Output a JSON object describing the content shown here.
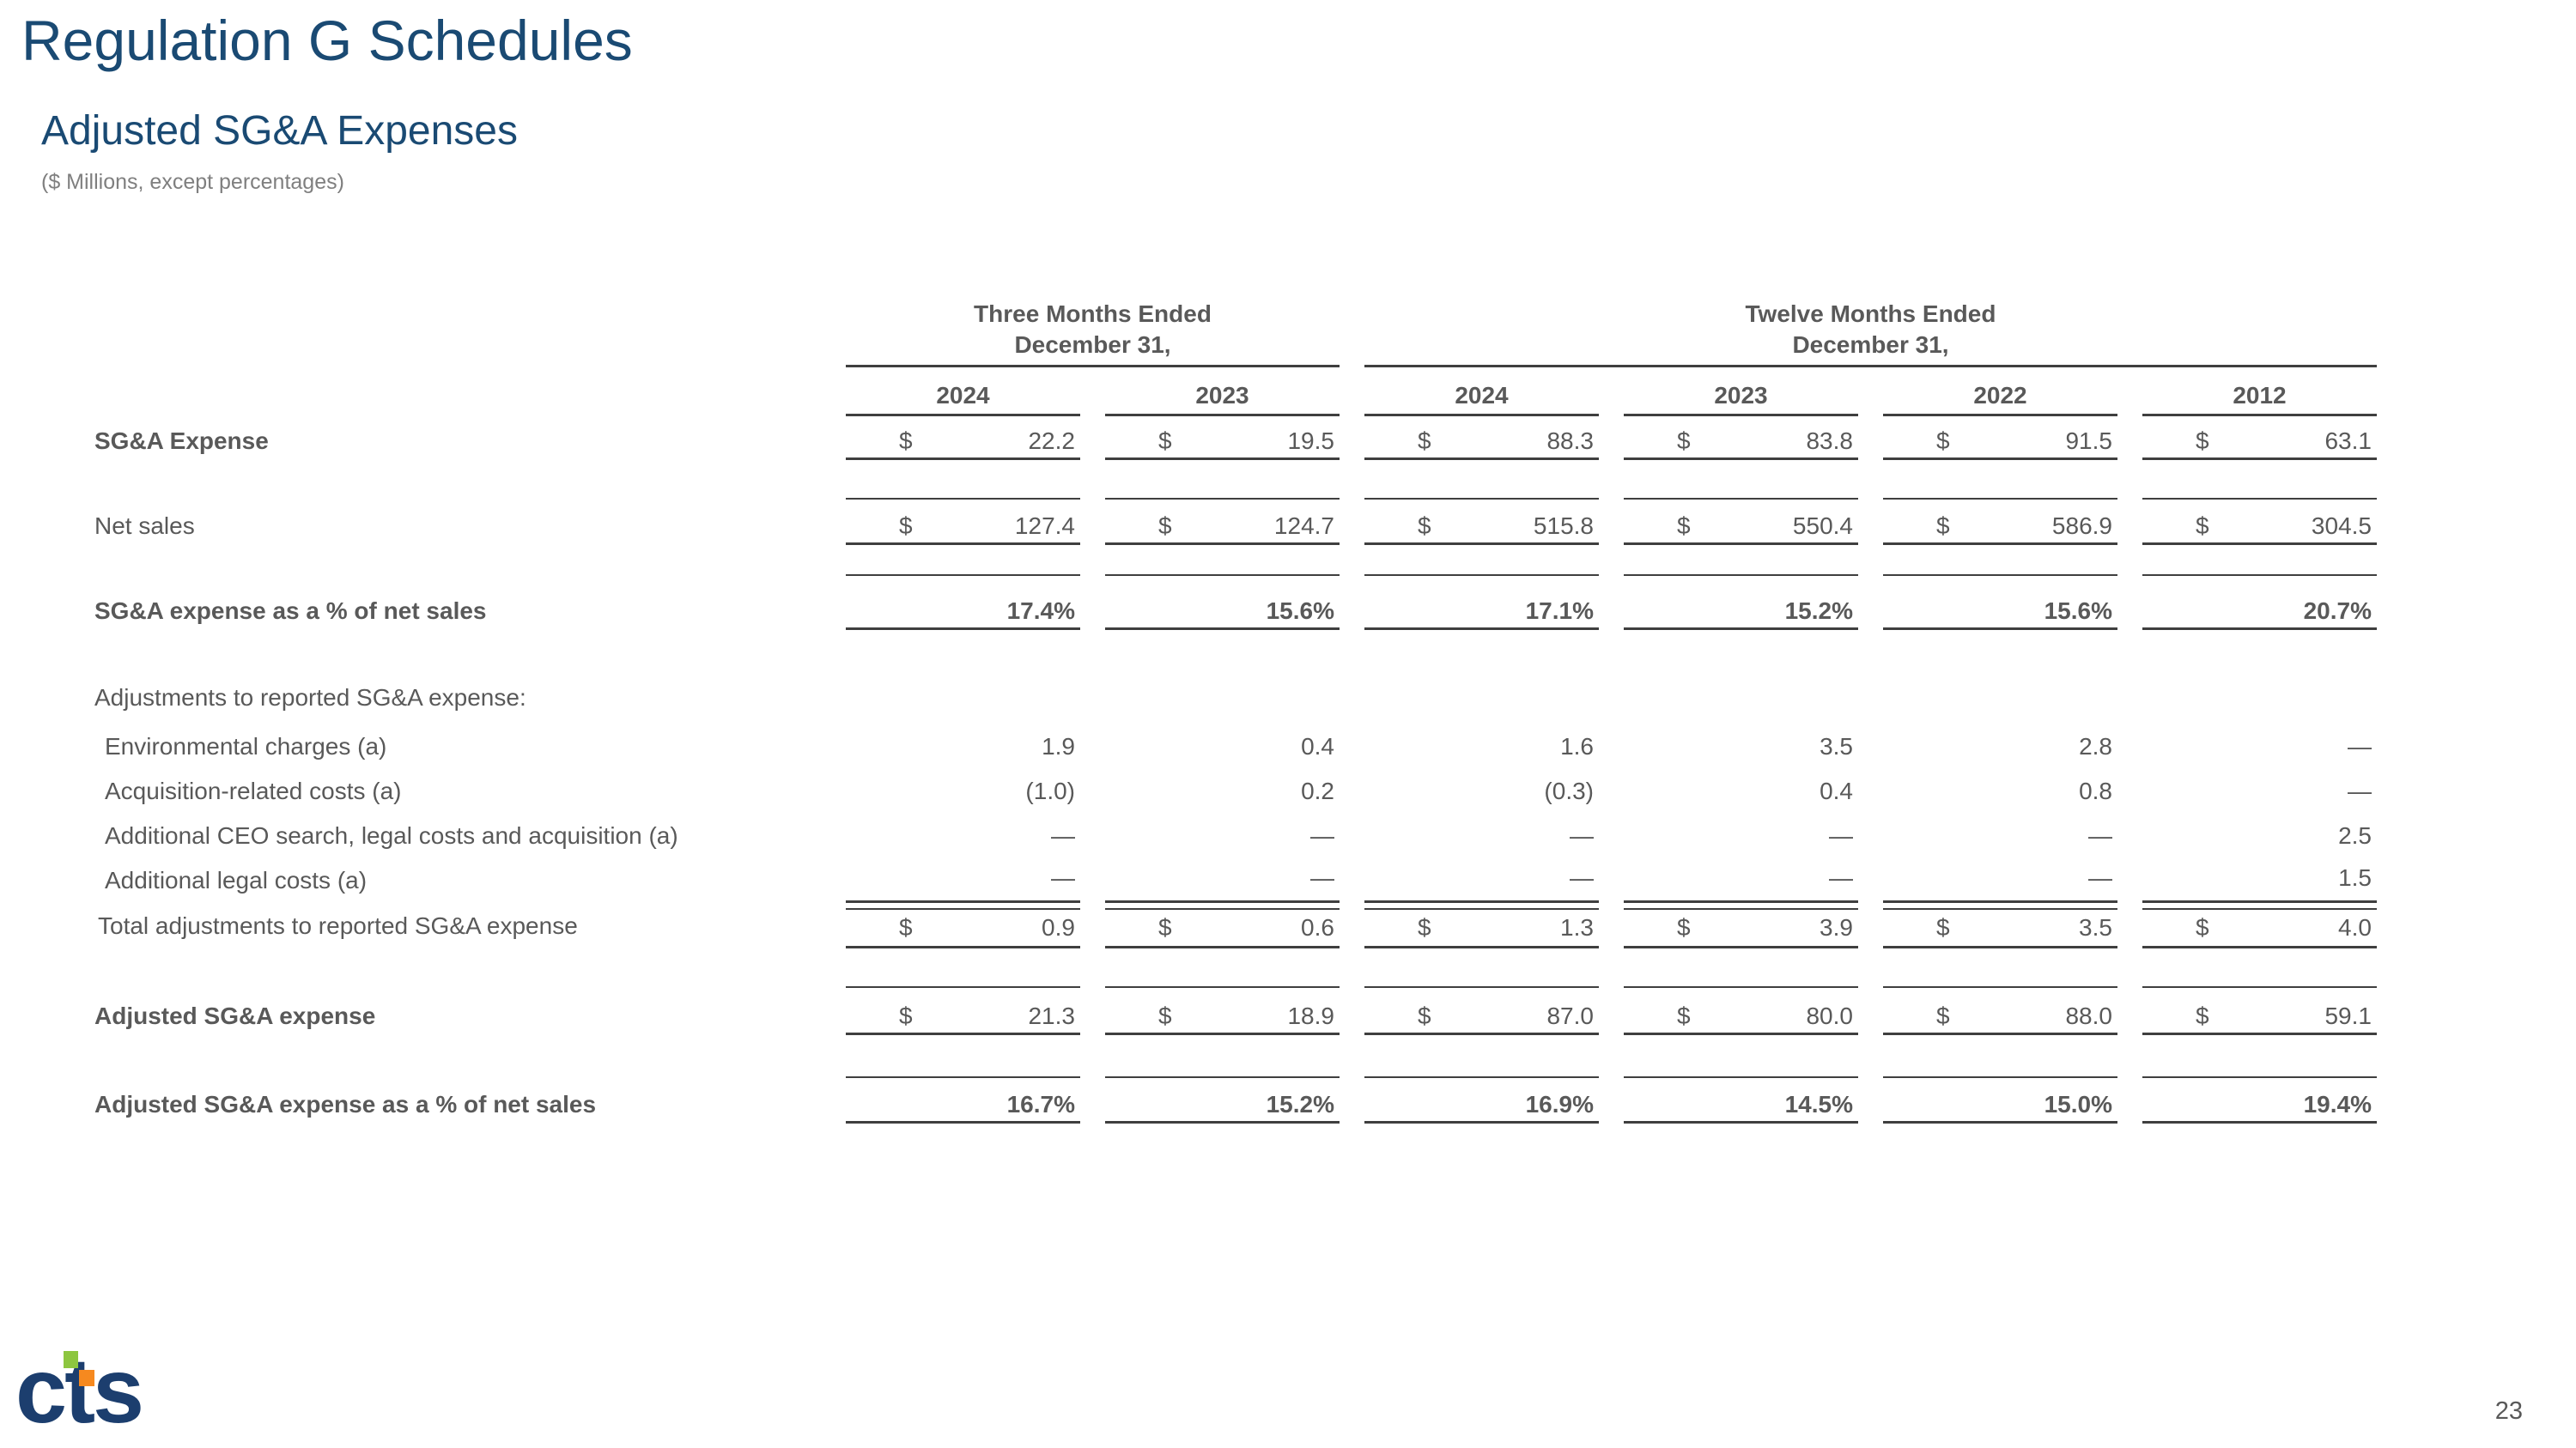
{
  "slide": {
    "title": "Regulation G Schedules",
    "subtitle": "Adjusted SG&A Expenses",
    "units_note": "($ Millions, except percentages)",
    "page_number": "23"
  },
  "logo": {
    "text": "cts",
    "navy": "#1C3E6E",
    "green": "#8DC63F",
    "orange": "#F6891F"
  },
  "colors": {
    "title_navy": "#1A4A73",
    "table_text": "#595959",
    "rule": "#3F3F3F",
    "note_gray": "#7F7F7F"
  },
  "table": {
    "groups": [
      {
        "line1": "Three Months Ended",
        "line2": "December 31,"
      },
      {
        "line1": "Twelve Months Ended",
        "line2": "December 31,"
      }
    ],
    "years": [
      "2024",
      "2023",
      "2024",
      "2023",
      "2022",
      "2012"
    ],
    "rows": [
      {
        "label": "SG&A Expense",
        "bold": true,
        "dollar": true,
        "values": [
          "22.2",
          "19.5",
          "88.3",
          "83.8",
          "91.5",
          "63.1"
        ]
      },
      {
        "label": "Net sales",
        "dollar": true,
        "values": [
          "127.4",
          "124.7",
          "515.8",
          "550.4",
          "586.9",
          "304.5"
        ]
      },
      {
        "label": "SG&A expense as a % of net sales",
        "bold": true,
        "bold_values": true,
        "values": [
          "17.4%",
          "15.6%",
          "17.1%",
          "15.2%",
          "15.6%",
          "20.7%"
        ]
      },
      {
        "label": "Adjustments to reported SG&A expense:",
        "section": true,
        "values": []
      },
      {
        "label": "Environmental charges (a)",
        "indent": true,
        "values": [
          "1.9",
          "0.4",
          "1.6",
          "3.5",
          "2.8",
          "—"
        ]
      },
      {
        "label": "Acquisition-related costs (a)",
        "indent": true,
        "values": [
          "(1.0)",
          "0.2",
          "(0.3)",
          "0.4",
          "0.8",
          "—"
        ]
      },
      {
        "label": "Additional CEO search, legal costs and acquisition (a)",
        "indent": true,
        "values": [
          "—",
          "—",
          "—",
          "—",
          "—",
          "2.5"
        ]
      },
      {
        "label": "Additional legal costs (a)",
        "indent": true,
        "values": [
          "—",
          "—",
          "—",
          "—",
          "—",
          "1.5"
        ]
      },
      {
        "label": "Total adjustments to reported SG&A expense",
        "dollar": true,
        "values": [
          "0.9",
          "0.6",
          "1.3",
          "3.9",
          "3.5",
          "4.0"
        ]
      },
      {
        "label": "Adjusted SG&A expense",
        "bold": true,
        "dollar": true,
        "values": [
          "21.3",
          "18.9",
          "87.0",
          "80.0",
          "88.0",
          "59.1"
        ]
      },
      {
        "label": "Adjusted SG&A expense as a % of net sales",
        "bold": true,
        "bold_values": true,
        "values": [
          "16.7%",
          "15.2%",
          "16.9%",
          "14.5%",
          "15.0%",
          "19.4%"
        ]
      }
    ]
  }
}
